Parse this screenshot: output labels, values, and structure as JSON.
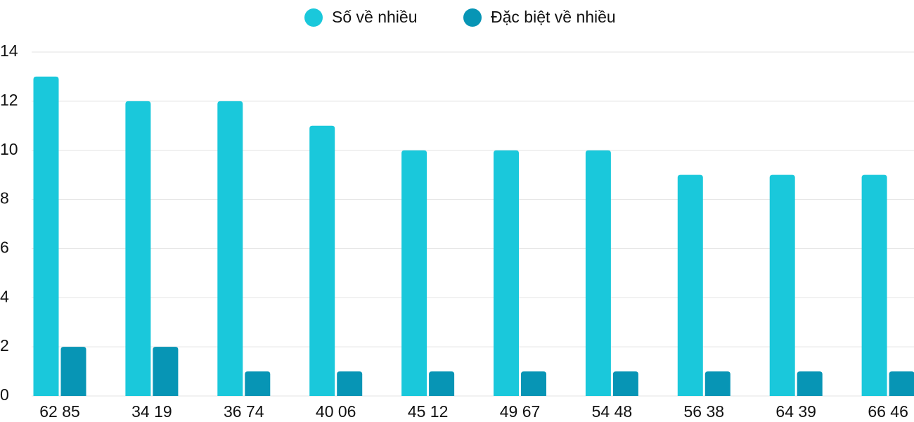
{
  "chart_data": {
    "type": "bar",
    "categories": [
      "62 85",
      "34 19",
      "36 74",
      "40 06",
      "45 12",
      "49 67",
      "54 48",
      "56 38",
      "64 39",
      "66 46"
    ],
    "series": [
      {
        "name": "Số về nhiều",
        "color": "#1ac8db",
        "values": [
          13,
          12,
          12,
          11,
          10,
          10,
          10,
          9,
          9,
          9
        ]
      },
      {
        "name": "Đặc biệt về nhiều",
        "color": "#0795b5",
        "values": [
          2,
          2,
          1,
          1,
          1,
          1,
          1,
          1,
          1,
          1
        ]
      }
    ],
    "ylim": [
      0,
      14
    ],
    "yticks": [
      0,
      2,
      4,
      6,
      8,
      10,
      12,
      14
    ],
    "grid": true,
    "legend": "top"
  }
}
